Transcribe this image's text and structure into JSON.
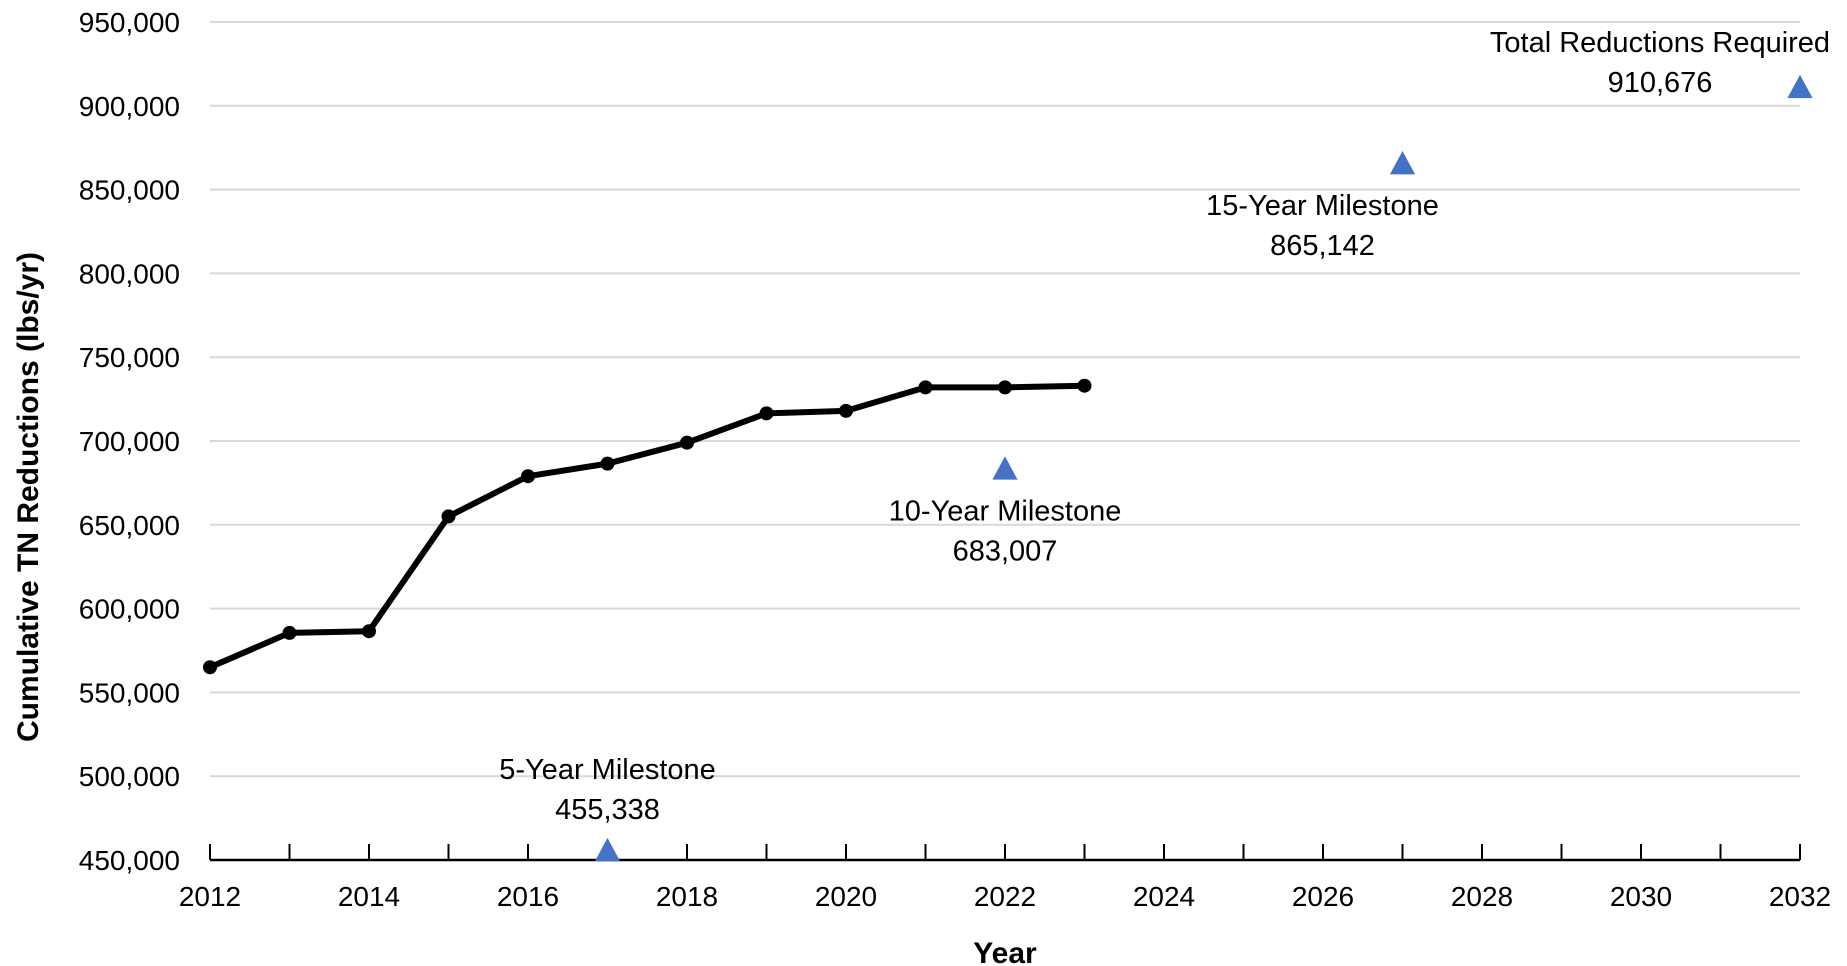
{
  "chart_data": {
    "type": "line",
    "title": "",
    "xlabel": "Year",
    "ylabel": "Cumulative TN Reductions (lbs/yr)",
    "xlim": [
      2012,
      2032
    ],
    "ylim": [
      450000,
      950000
    ],
    "x_ticks": [
      "2012",
      "2014",
      "2016",
      "2018",
      "2020",
      "2022",
      "2024",
      "2026",
      "2028",
      "2030",
      "2032"
    ],
    "y_ticks": [
      "450,000",
      "500,000",
      "550,000",
      "600,000",
      "650,000",
      "700,000",
      "750,000",
      "800,000",
      "850,000",
      "900,000",
      "950,000"
    ],
    "grid": "horizontal",
    "legend": "none",
    "series": [
      {
        "color": "#000000",
        "marker": "circle",
        "points": [
          {
            "x": 2012,
            "y": 565000
          },
          {
            "x": 2013,
            "y": 585500
          },
          {
            "x": 2014,
            "y": 586500
          },
          {
            "x": 2015,
            "y": 655000
          },
          {
            "x": 2016,
            "y": 679000
          },
          {
            "x": 2017,
            "y": 686500
          },
          {
            "x": 2018,
            "y": 699000
          },
          {
            "x": 2019,
            "y": 716500
          },
          {
            "x": 2020,
            "y": 718000
          },
          {
            "x": 2021,
            "y": 732000
          },
          {
            "x": 2022,
            "y": 732000
          },
          {
            "x": 2023,
            "y": 733000
          }
        ]
      }
    ],
    "milestones": [
      {
        "x": 2017,
        "y": 455338,
        "label": "5-Year Milestone",
        "value_label": "455,338",
        "label_position": "above"
      },
      {
        "x": 2022,
        "y": 683007,
        "label": "10-Year Milestone",
        "value_label": "683,007",
        "label_position": "below"
      },
      {
        "x": 2027,
        "y": 865142,
        "label": "15-Year Milestone",
        "value_label": "865,142",
        "label_position": "below-left"
      },
      {
        "x": 2032,
        "y": 910676,
        "label": "Total Reductions Required",
        "value_label": "910,676",
        "label_position": "above-left"
      }
    ],
    "milestone_color": "#4472C4"
  }
}
